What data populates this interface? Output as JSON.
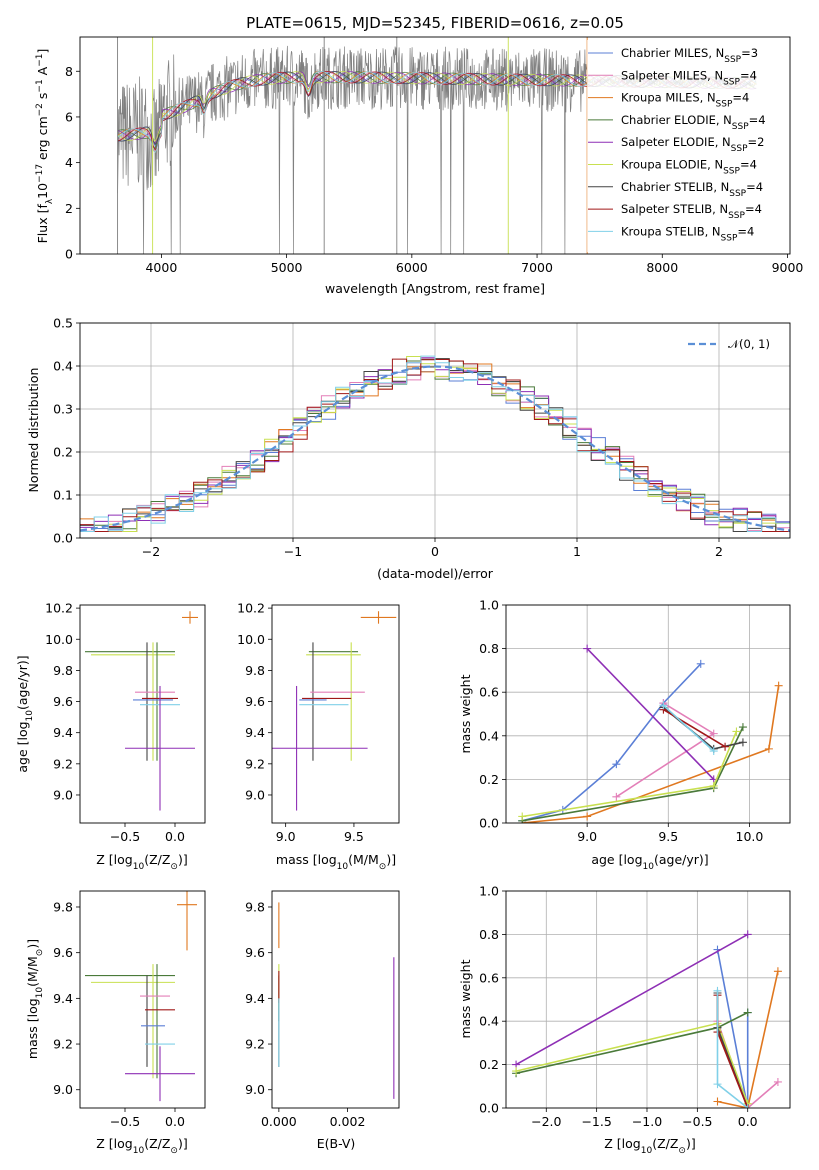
{
  "colors": {
    "Chabrier MILES": "#5b7fd6",
    "Salpeter MILES": "#e37fb8",
    "Kroupa MILES": "#e07820",
    "Chabrier ELODIE": "#4a7a3a",
    "Salpeter ELODIE": "#8e2fb5",
    "Kroupa ELODIE": "#c8e050",
    "Chabrier STELIB": "#444444",
    "Salpeter STELIB": "#a01818",
    "Kroupa STELIB": "#80d0e8",
    "data": "#808080",
    "gaussian": "#5b8fd6"
  },
  "chart_data": [
    {
      "id": "spectrum",
      "type": "line",
      "title": "PLATE=0615, MJD=52345, FIBERID=0616, z=0.05",
      "xlabel": "wavelength [Angstrom, rest frame]",
      "ylabel_main": "Flux [f",
      "ylabel_sub": "λ",
      "ylabel_mid": "10",
      "ylabel_sup1": "−17",
      "ylabel_rest1": " erg cm",
      "ylabel_sup2": "−2",
      "ylabel_rest2": " s",
      "ylabel_sup3": "−1",
      "ylabel_rest3": " A",
      "ylabel_sup4": "−1",
      "ylabel_end": "]",
      "xlim": [
        3350,
        9020
      ],
      "ylim": [
        0,
        9.5
      ],
      "xticks": [
        "4000",
        "5000",
        "6000",
        "7000",
        "8000",
        "9000"
      ],
      "yticks": [
        "0",
        "2",
        "4",
        "6",
        "8"
      ],
      "xtick_values": [
        4000,
        5000,
        6000,
        7000,
        8000,
        9000
      ],
      "ytick_values": [
        0,
        2,
        4,
        6,
        8
      ],
      "legend_position": "top-right",
      "legend": [
        {
          "name": "Chabrier MILES",
          "n": "3"
        },
        {
          "name": "Salpeter MILES",
          "n": "4"
        },
        {
          "name": "Kroupa MILES",
          "n": "4"
        },
        {
          "name": "Chabrier ELODIE",
          "n": "4"
        },
        {
          "name": "Salpeter ELODIE",
          "n": "2"
        },
        {
          "name": "Kroupa ELODIE",
          "n": "4"
        },
        {
          "name": "Chabrier STELIB",
          "n": "4"
        },
        {
          "name": "Salpeter STELIB",
          "n": "4"
        },
        {
          "name": "Kroupa STELIB",
          "n": "4"
        }
      ],
      "legend_prefix": "N",
      "legend_sub": "SSP"
    },
    {
      "id": "residuals",
      "type": "bar",
      "xlabel": "(data-model)/error",
      "ylabel": "Normed distribution",
      "xlim": [
        -2.5,
        2.5
      ],
      "ylim": [
        0,
        0.5
      ],
      "xticks": [
        "−2",
        "−1",
        "0",
        "1",
        "2"
      ],
      "yticks": [
        "0.0",
        "0.1",
        "0.2",
        "0.3",
        "0.4",
        "0.5"
      ],
      "xtick_values": [
        -2,
        -1,
        0,
        1,
        2
      ],
      "ytick_values": [
        0,
        0.1,
        0.2,
        0.3,
        0.4,
        0.5
      ],
      "legend_label": "𝒩(0, 1)",
      "legend_position": "top-right",
      "grid": true
    },
    {
      "id": "Z_age",
      "type": "scatter",
      "xlabel": "Z [log",
      "xlabel_sub": "10",
      "xlabel_rest": "(Z/Z",
      "xlabel_sub2": "⊙",
      "xlabel_end": ")]",
      "ylabel": "age  [log",
      "ylabel_sub": "10",
      "ylabel_rest": "(age/yr)]",
      "xlim": [
        -0.95,
        0.3
      ],
      "ylim": [
        8.82,
        10.22
      ],
      "xticks": [
        "−0.5",
        "0.0"
      ],
      "xtick_values": [
        -0.5,
        0
      ],
      "yticks": [
        "9.0",
        "9.2",
        "9.4",
        "9.6",
        "9.8",
        "10.0",
        "10.2"
      ],
      "ytick_values": [
        9.0,
        9.2,
        9.4,
        9.6,
        9.8,
        10.0,
        10.2
      ],
      "points": [
        {
          "series": "Kroupa MILES",
          "x": 0.15,
          "y": 10.14,
          "xerr": 0.08,
          "yerr": 0.04
        },
        {
          "series": "Chabrier ELODIE",
          "x": -0.45,
          "y": 9.92,
          "xerr": 0.45,
          "yerr": 0.0
        },
        {
          "series": "Kroupa ELODIE",
          "x": -0.42,
          "y": 9.9,
          "xerr": 0.42,
          "yerr": 0.0
        },
        {
          "series": "Chabrier STELIB",
          "x": -0.28,
          "y": 9.6,
          "xerr": 0.0,
          "yerr": 0.38
        },
        {
          "series": "Kroupa ELODIE",
          "x": -0.22,
          "y": 9.6,
          "xerr": 0.0,
          "yerr": 0.38
        },
        {
          "series": "Chabrier ELODIE",
          "x": -0.18,
          "y": 9.6,
          "xerr": 0.0,
          "yerr": 0.38
        },
        {
          "series": "Salpeter MILES",
          "x": -0.2,
          "y": 9.66,
          "xerr": 0.2,
          "yerr": 0.0
        },
        {
          "series": "Salpeter STELIB",
          "x": -0.15,
          "y": 9.62,
          "xerr": 0.18,
          "yerr": 0.0
        },
        {
          "series": "Chabrier MILES",
          "x": -0.22,
          "y": 9.61,
          "xerr": 0.2,
          "yerr": 0.0
        },
        {
          "series": "Kroupa STELIB",
          "x": -0.15,
          "y": 9.58,
          "xerr": 0.2,
          "yerr": 0.0
        },
        {
          "series": "Salpeter ELODIE",
          "x": -0.15,
          "y": 9.3,
          "xerr": 0.35,
          "yerr": 0.4
        }
      ]
    },
    {
      "id": "mass_age",
      "type": "scatter",
      "xlabel": "mass [log",
      "xlabel_sub": "10",
      "xlabel_rest": "(M/M",
      "xlabel_sub2": "⊙",
      "xlabel_end": ")]",
      "xlim": [
        8.9,
        9.83
      ],
      "ylim": [
        8.82,
        10.22
      ],
      "xticks": [
        "9.0",
        "9.5"
      ],
      "xtick_values": [
        9.0,
        9.5
      ],
      "yticks": [
        "9.0",
        "9.2",
        "9.4",
        "9.6",
        "9.8",
        "10.0",
        "10.2"
      ],
      "ytick_values": [
        9.0,
        9.2,
        9.4,
        9.6,
        9.8,
        10.0,
        10.2
      ],
      "points": [
        {
          "series": "Kroupa MILES",
          "x": 9.68,
          "y": 10.14,
          "xerr": 0.13,
          "yerr": 0.04
        },
        {
          "series": "Chabrier ELODIE",
          "x": 9.35,
          "y": 9.92,
          "xerr": 0.18,
          "yerr": 0.0
        },
        {
          "series": "Kroupa ELODIE",
          "x": 9.35,
          "y": 9.9,
          "xerr": 0.2,
          "yerr": 0.0
        },
        {
          "series": "Chabrier STELIB",
          "x": 9.2,
          "y": 9.6,
          "xerr": 0.0,
          "yerr": 0.38
        },
        {
          "series": "Kroupa ELODIE",
          "x": 9.48,
          "y": 9.6,
          "xerr": 0.0,
          "yerr": 0.38
        },
        {
          "series": "Salpeter MILES",
          "x": 9.38,
          "y": 9.66,
          "xerr": 0.2,
          "yerr": 0.0
        },
        {
          "series": "Salpeter STELIB",
          "x": 9.3,
          "y": 9.62,
          "xerr": 0.18,
          "yerr": 0.0
        },
        {
          "series": "Chabrier MILES",
          "x": 9.2,
          "y": 9.61,
          "xerr": 0.1,
          "yerr": 0.0
        },
        {
          "series": "Kroupa STELIB",
          "x": 9.28,
          "y": 9.58,
          "xerr": 0.18,
          "yerr": 0.0
        },
        {
          "series": "Salpeter ELODIE",
          "x": 9.08,
          "y": 9.3,
          "xerr": 0.52,
          "yerr": 0.4
        }
      ]
    },
    {
      "id": "age_weight",
      "type": "line",
      "xlabel": "age  [log",
      "xlabel_sub": "10",
      "xlabel_rest": "(age/yr)]",
      "ylabel": "mass weight",
      "xlim": [
        8.5,
        10.25
      ],
      "ylim": [
        0,
        1.0
      ],
      "xticks": [
        "9.0",
        "9.5",
        "10.0"
      ],
      "xtick_values": [
        9.0,
        9.5,
        10.0
      ],
      "yticks": [
        "0.0",
        "0.2",
        "0.4",
        "0.6",
        "0.8",
        "1.0"
      ],
      "ytick_values": [
        0,
        0.2,
        0.4,
        0.6,
        0.8,
        1.0
      ],
      "grid": true,
      "series": [
        {
          "name": "Chabrier MILES",
          "x": [
            8.6,
            8.85,
            9.18,
            9.47,
            9.7
          ],
          "y": [
            0.01,
            0.06,
            0.27,
            0.55,
            0.73
          ]
        },
        {
          "name": "Salpeter MILES",
          "x": [
            9.18,
            9.78,
            9.47
          ],
          "y": [
            0.12,
            0.41,
            0.55
          ]
        },
        {
          "name": "Kroupa MILES",
          "x": [
            8.6,
            9.0,
            10.12,
            10.18
          ],
          "y": [
            0.0,
            0.03,
            0.34,
            0.63
          ]
        },
        {
          "name": "Chabrier ELODIE",
          "x": [
            8.6,
            9.78,
            9.96
          ],
          "y": [
            0.01,
            0.16,
            0.44
          ]
        },
        {
          "name": "Salpeter ELODIE",
          "x": [
            9.0,
            9.78
          ],
          "y": [
            0.8,
            0.2
          ]
        },
        {
          "name": "Kroupa ELODIE",
          "x": [
            8.6,
            9.78,
            9.92
          ],
          "y": [
            0.03,
            0.17,
            0.42
          ]
        },
        {
          "name": "Chabrier STELIB",
          "x": [
            9.47,
            9.78,
            9.96
          ],
          "y": [
            0.53,
            0.34,
            0.37
          ]
        },
        {
          "name": "Salpeter STELIB",
          "x": [
            9.47,
            9.85
          ],
          "y": [
            0.52,
            0.35
          ]
        },
        {
          "name": "Kroupa STELIB",
          "x": [
            9.47,
            9.78
          ],
          "y": [
            0.54,
            0.33
          ]
        }
      ]
    },
    {
      "id": "Z_mass",
      "type": "scatter",
      "xlabel": "Z [log",
      "xlabel_sub": "10",
      "xlabel_rest": "(Z/Z",
      "xlabel_sub2": "⊙",
      "xlabel_end": ")]",
      "ylabel": "mass [log",
      "ylabel_sub": "10",
      "ylabel_rest": "(M/M",
      "ylabel_sub2": "⊙",
      "ylabel_end": ")]",
      "xlim": [
        -0.95,
        0.3
      ],
      "ylim": [
        8.92,
        9.87
      ],
      "xticks": [
        "−0.5",
        "0.0"
      ],
      "xtick_values": [
        -0.5,
        0
      ],
      "yticks": [
        "9.0",
        "9.2",
        "9.4",
        "9.6",
        "9.8"
      ],
      "ytick_values": [
        9.0,
        9.2,
        9.4,
        9.6,
        9.8
      ],
      "points": [
        {
          "series": "Kroupa MILES",
          "x": 0.12,
          "y": 9.81,
          "xerr": 0.1,
          "yerr": 0.2
        },
        {
          "series": "Chabrier ELODIE",
          "x": -0.45,
          "y": 9.5,
          "xerr": 0.45,
          "yerr": 0.0
        },
        {
          "series": "Kroupa ELODIE",
          "x": -0.42,
          "y": 9.47,
          "xerr": 0.42,
          "yerr": 0.0
        },
        {
          "series": "Chabrier STELIB",
          "x": -0.28,
          "y": 9.3,
          "xerr": 0.0,
          "yerr": 0.2
        },
        {
          "series": "Kroupa ELODIE",
          "x": -0.22,
          "y": 9.3,
          "xerr": 0.0,
          "yerr": 0.25
        },
        {
          "series": "Chabrier ELODIE",
          "x": -0.18,
          "y": 9.3,
          "xerr": 0.0,
          "yerr": 0.25
        },
        {
          "series": "Salpeter MILES",
          "x": -0.2,
          "y": 9.41,
          "xerr": 0.15,
          "yerr": 0.0
        },
        {
          "series": "Salpeter STELIB",
          "x": -0.15,
          "y": 9.35,
          "xerr": 0.15,
          "yerr": 0.0
        },
        {
          "series": "Chabrier MILES",
          "x": -0.22,
          "y": 9.28,
          "xerr": 0.12,
          "yerr": 0.0
        },
        {
          "series": "Kroupa STELIB",
          "x": -0.15,
          "y": 9.2,
          "xerr": 0.15,
          "yerr": 0.0
        },
        {
          "series": "Salpeter ELODIE",
          "x": -0.15,
          "y": 9.07,
          "xerr": 0.35,
          "yerr": 0.12
        }
      ]
    },
    {
      "id": "ebv_mass",
      "type": "scatter",
      "xlabel": "E(B-V)",
      "xlim": [
        -0.0002,
        0.0035
      ],
      "ylim": [
        8.92,
        9.87
      ],
      "xticks": [
        "0.000",
        "0.002"
      ],
      "xtick_values": [
        0.0,
        0.002
      ],
      "yticks": [
        "9.0",
        "9.2",
        "9.4",
        "9.6",
        "9.8"
      ],
      "ytick_values": [
        9.0,
        9.2,
        9.4,
        9.6,
        9.8
      ],
      "points": [
        {
          "series": "Kroupa MILES",
          "x": 0.0,
          "y": 9.72,
          "xerr": 0.0,
          "yerr": 0.1
        },
        {
          "series": "Chabrier ELODIE",
          "x": 0.0,
          "y": 9.4,
          "xerr": 0.0,
          "yerr": 0.1
        },
        {
          "series": "Kroupa ELODIE",
          "x": 0.0,
          "y": 9.45,
          "xerr": 0.0,
          "yerr": 0.1
        },
        {
          "series": "Chabrier STELIB",
          "x": 0.0,
          "y": 9.25,
          "xerr": 0.0,
          "yerr": 0.15
        },
        {
          "series": "Salpeter STELIB",
          "x": 0.0,
          "y": 9.45,
          "xerr": 0.0,
          "yerr": 0.07
        },
        {
          "series": "Kroupa STELIB",
          "x": 0.0,
          "y": 9.25,
          "xerr": 0.0,
          "yerr": 0.15
        },
        {
          "series": "Salpeter ELODIE",
          "x": 0.00335,
          "y": 9.27,
          "xerr": 0.0,
          "yerr": 0.31
        }
      ]
    },
    {
      "id": "Z_weight",
      "type": "line",
      "xlabel": "Z [log",
      "xlabel_sub": "10",
      "xlabel_rest": "(Z/Z",
      "xlabel_sub2": "⊙",
      "xlabel_end": ")]",
      "ylabel": "mass weight",
      "xlim": [
        -2.4,
        0.42
      ],
      "ylim": [
        0,
        1.0
      ],
      "xticks": [
        "−2.0",
        "−1.5",
        "−1.0",
        "−0.5",
        "0.0"
      ],
      "xtick_values": [
        -2.0,
        -1.5,
        -1.0,
        -0.5,
        0.0
      ],
      "yticks": [
        "0.0",
        "0.2",
        "0.4",
        "0.6",
        "0.8",
        "1.0"
      ],
      "ytick_values": [
        0,
        0.2,
        0.4,
        0.6,
        0.8,
        1.0
      ],
      "grid": true,
      "series": [
        {
          "name": "Chabrier MILES",
          "x": [
            -0.3,
            0.0,
            0.0
          ],
          "y": [
            0.73,
            0.0,
            0.44
          ]
        },
        {
          "name": "Salpeter MILES",
          "x": [
            -0.3,
            0.0,
            0.3
          ],
          "y": [
            0.4,
            0.0,
            0.12
          ]
        },
        {
          "name": "Kroupa MILES",
          "x": [
            -0.3,
            0.0,
            0.3
          ],
          "y": [
            0.03,
            0.0,
            0.63
          ]
        },
        {
          "name": "Chabrier ELODIE",
          "x": [
            -2.3,
            -0.3,
            0.0
          ],
          "y": [
            0.16,
            0.37,
            0.44
          ]
        },
        {
          "name": "Salpeter ELODIE",
          "x": [
            -2.3,
            0.0
          ],
          "y": [
            0.2,
            0.8
          ]
        },
        {
          "name": "Kroupa ELODIE",
          "x": [
            -2.3,
            -0.3,
            0.0
          ],
          "y": [
            0.17,
            0.39,
            0.02
          ]
        },
        {
          "name": "Chabrier STELIB",
          "x": [
            -0.3,
            -0.3,
            0.0
          ],
          "y": [
            0.53,
            0.37,
            0.0
          ]
        },
        {
          "name": "Salpeter STELIB",
          "x": [
            -0.3,
            -0.3,
            0.0
          ],
          "y": [
            0.52,
            0.35,
            0.0
          ]
        },
        {
          "name": "Kroupa STELIB",
          "x": [
            -0.3,
            -0.3,
            0.0
          ],
          "y": [
            0.54,
            0.11,
            0.0
          ]
        }
      ]
    }
  ]
}
